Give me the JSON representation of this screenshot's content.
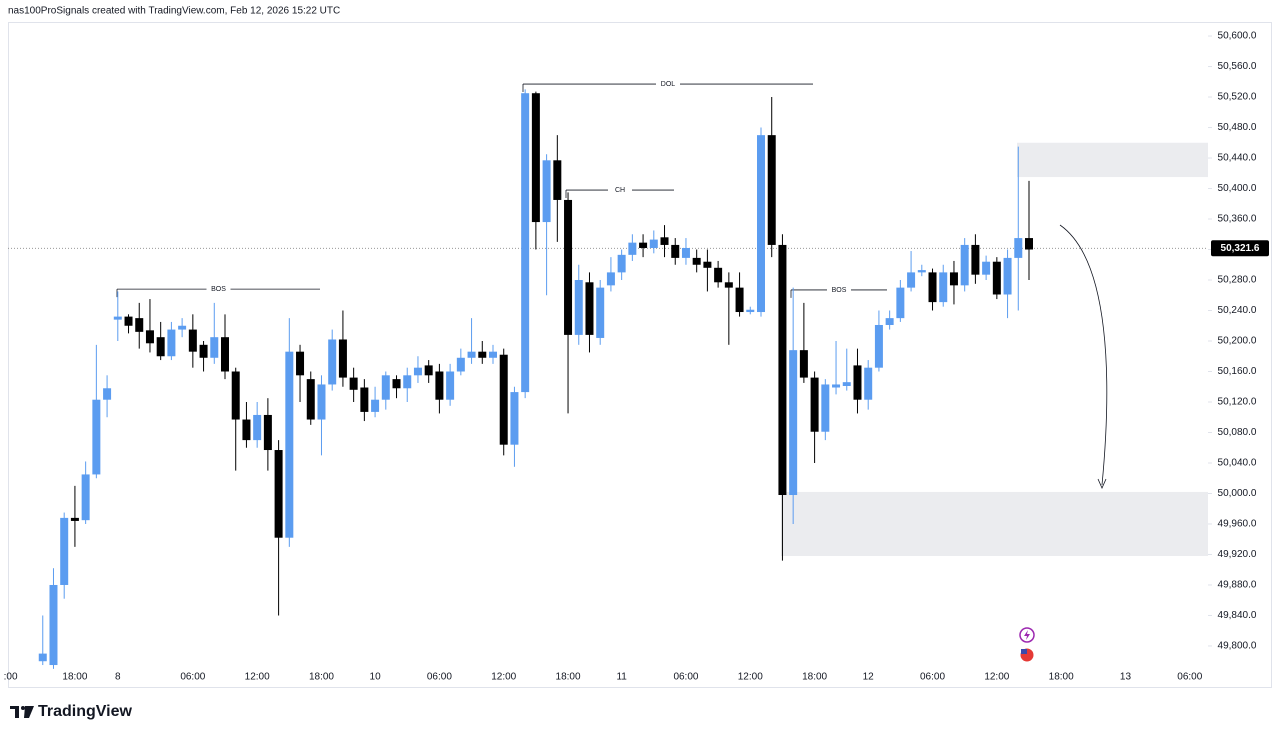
{
  "chart_data": {
    "type": "candlestick",
    "title": "nas100ProSignals created with TradingView.com, Feb 12, 2026 15:22 UTC",
    "brand": "TradingView",
    "up_color": "#5b9cf0",
    "down_color": "#000000",
    "categories": [
      ":00",
      null,
      null,
      null,
      null,
      null,
      "18:00",
      null,
      null,
      null,
      "8",
      null,
      null,
      null,
      null,
      null,
      null,
      "06:00",
      null,
      null,
      null,
      null,
      null,
      "12:00",
      null,
      null,
      null,
      null,
      null,
      "18:00",
      null,
      null,
      null,
      null,
      "10",
      null,
      null,
      null,
      null,
      null,
      "06:00",
      null,
      null,
      null,
      null,
      null,
      "12:00",
      null,
      null,
      null,
      null,
      null,
      "18:00",
      null,
      null,
      null,
      null,
      "11",
      null,
      null,
      null,
      null,
      null,
      "06:00",
      null,
      null,
      null,
      null,
      null,
      "12:00",
      null,
      null,
      null,
      null,
      null,
      "18:00",
      null,
      null,
      null,
      null,
      "12",
      null,
      null,
      null,
      null,
      null,
      "06:00",
      null,
      null,
      null,
      null,
      null,
      "12:00",
      null,
      null,
      null,
      null,
      null,
      "18:00",
      null,
      null,
      null,
      null,
      null,
      "13",
      null,
      null,
      null,
      null,
      null,
      "06:00",
      null
    ],
    "open": [
      null,
      null,
      null,
      49780,
      49775,
      49880,
      49968,
      49965,
      50025,
      50123,
      50228,
      50232,
      50230,
      50214,
      50205,
      50180,
      50215,
      50215,
      50195,
      50178,
      50205,
      50160,
      50097,
      50070,
      50103,
      50057,
      49942,
      50186,
      50150,
      50097,
      50143,
      50202,
      50152,
      50139,
      50107,
      50123,
      50150,
      50138,
      50155,
      50168,
      50160,
      50123,
      50160,
      50178,
      50186,
      50178,
      50182,
      50064,
      50133,
      50525,
      50356,
      50437,
      50385,
      50208,
      50277,
      50204,
      50273,
      50290,
      50313,
      50329,
      50322,
      50336,
      50326,
      50309,
      50309,
      50304,
      50296,
      50277,
      50270,
      50238,
      50238,
      50470,
      50326,
      49998,
      50188,
      50152,
      50081,
      50139,
      50141,
      50168,
      50123,
      50165,
      50221,
      50230,
      50270,
      50290,
      50290,
      50251,
      50290,
      50273,
      50326,
      50287,
      50304,
      50261,
      50309,
      50335,
      null,
      null,
      null,
      null,
      null,
      null,
      null,
      null,
      null,
      null,
      null,
      null,
      null,
      null,
      null,
      null
    ],
    "high": [
      null,
      null,
      null,
      49840,
      49902,
      49975,
      50010,
      50042,
      50195,
      50155,
      50265,
      50235,
      50250,
      50255,
      50225,
      50225,
      50230,
      50235,
      50200,
      50250,
      50235,
      50165,
      50120,
      50120,
      50125,
      50070,
      50230,
      50195,
      50160,
      50155,
      50215,
      50240,
      50165,
      50150,
      50140,
      50160,
      50155,
      50165,
      50180,
      50175,
      50170,
      50170,
      50190,
      50230,
      50200,
      50195,
      50190,
      50140,
      50530,
      50527,
      50445,
      50470,
      50395,
      50300,
      50290,
      50280,
      50310,
      50320,
      50340,
      50340,
      50345,
      50352,
      50335,
      50335,
      50320,
      50320,
      50305,
      50290,
      50290,
      50245,
      50480,
      50520,
      50340,
      50270,
      50250,
      50160,
      50150,
      50200,
      50190,
      50190,
      50175,
      50240,
      50240,
      50280,
      50318,
      50300,
      50295,
      50300,
      50305,
      50335,
      50340,
      50312,
      50310,
      50320,
      50455,
      50410,
      null,
      null,
      null,
      null,
      null,
      null,
      null,
      null,
      null,
      null,
      null,
      null,
      null,
      null,
      null,
      null
    ],
    "low": [
      null,
      null,
      null,
      49775,
      49770,
      49862,
      49930,
      49960,
      50020,
      50100,
      50200,
      50210,
      50190,
      50185,
      50175,
      50175,
      50205,
      50165,
      50160,
      50170,
      50150,
      50030,
      50060,
      50060,
      50030,
      49840,
      49930,
      50120,
      50090,
      50050,
      50135,
      50140,
      50120,
      50095,
      50100,
      50110,
      50125,
      50120,
      50145,
      50145,
      50105,
      50115,
      50155,
      50170,
      50170,
      50170,
      50050,
      50035,
      50125,
      50320,
      50260,
      50330,
      50105,
      50195,
      50185,
      50195,
      50265,
      50280,
      50305,
      50310,
      50315,
      50310,
      50300,
      50300,
      50290,
      50265,
      50270,
      50195,
      50232,
      50235,
      50232,
      50310,
      49912,
      49960,
      50145,
      50040,
      50070,
      50130,
      50135,
      50105,
      50110,
      50160,
      50215,
      50225,
      50265,
      50285,
      50240,
      50245,
      50248,
      50265,
      50275,
      50280,
      50255,
      50230,
      50240,
      50280,
      null,
      null,
      null,
      null,
      null,
      null,
      null,
      null,
      null,
      null,
      null,
      null,
      null,
      null,
      null,
      null
    ],
    "close": [
      null,
      null,
      null,
      49790,
      49880,
      49968,
      49964,
      50025,
      50123,
      50138,
      50232,
      50220,
      50212,
      50197,
      50180,
      50215,
      50220,
      50186,
      50178,
      50205,
      50160,
      50097,
      50070,
      50103,
      50057,
      49942,
      50186,
      50155,
      50097,
      50143,
      50202,
      50152,
      50136,
      50107,
      50123,
      50155,
      50138,
      50155,
      50165,
      50155,
      50123,
      50160,
      50178,
      50186,
      50178,
      50186,
      50064,
      50133,
      50525,
      50356,
      50437,
      50385,
      50208,
      50280,
      50208,
      50270,
      50290,
      50313,
      50329,
      50322,
      50333,
      50326,
      50309,
      50322,
      50300,
      50296,
      50277,
      50270,
      50238,
      50241,
      50470,
      50326,
      49998,
      50188,
      50152,
      50081,
      50143,
      50143,
      50146,
      50123,
      50165,
      50221,
      50230,
      50270,
      50290,
      50293,
      50251,
      50290,
      50273,
      50326,
      50287,
      50304,
      50261,
      50309,
      50335,
      50320,
      null,
      null,
      null,
      null,
      null,
      null,
      null,
      null,
      null,
      null,
      null,
      null,
      null,
      null,
      null,
      null
    ],
    "ylim": [
      49747.5,
      50618.4
    ],
    "yticks": [
      {
        "value": 49800,
        "label": "49,800.0"
      },
      {
        "value": 49840,
        "label": "49,840.0"
      },
      {
        "value": 49880,
        "label": "49,880.0"
      },
      {
        "value": 49920,
        "label": "49,920.0"
      },
      {
        "value": 49960,
        "label": "49,960.0"
      },
      {
        "value": 50000,
        "label": "50,000.0"
      },
      {
        "value": 50040,
        "label": "50,040.0"
      },
      {
        "value": 50080,
        "label": "50,080.0"
      },
      {
        "value": 50120,
        "label": "50,120.0"
      },
      {
        "value": 50160,
        "label": "50,160.0"
      },
      {
        "value": 50200,
        "label": "50,200.0"
      },
      {
        "value": 50240,
        "label": "50,240.0"
      },
      {
        "value": 50280,
        "label": "50,280.0"
      },
      {
        "value": 50320,
        "label": "50,320.0"
      },
      {
        "value": 50360,
        "label": "50,360.0"
      },
      {
        "value": 50400,
        "label": "50,400.0"
      },
      {
        "value": 50440,
        "label": "50,440.0"
      },
      {
        "value": 50480,
        "label": "50,480.0"
      },
      {
        "value": 50520,
        "label": "50,520.0"
      },
      {
        "value": 50560,
        "label": "50,560.0"
      },
      {
        "value": 50600,
        "label": "50,600.0"
      }
    ],
    "last_price": {
      "value": 50321.6,
      "label": "50,321.6"
    },
    "annotations": [
      {
        "text": "BOS",
        "level": 50268
      },
      {
        "text": "DOL",
        "level": 50537
      },
      {
        "text": "CH",
        "level": 50398
      },
      {
        "text": "BOS",
        "level": 50267
      }
    ],
    "zones": [
      {
        "top": 50460,
        "bottom": 50415
      },
      {
        "top": 50002,
        "bottom": 49918
      }
    ],
    "grid": false
  }
}
